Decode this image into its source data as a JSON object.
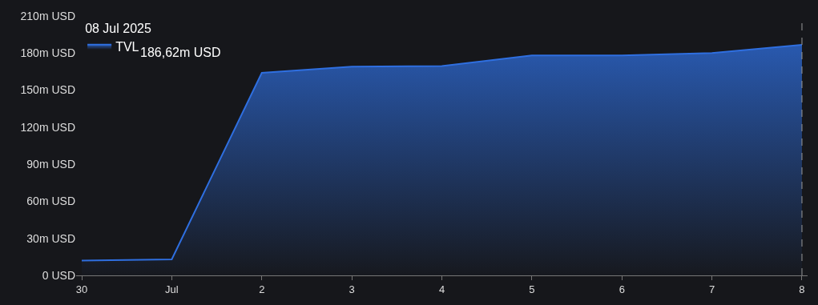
{
  "chart_data": {
    "type": "area",
    "legend_title": "08 Jul 2025",
    "x": [
      "2025-06-30",
      "2025-07-01",
      "2025-07-02",
      "2025-07-03",
      "2025-07-04",
      "2025-07-05",
      "2025-07-06",
      "2025-07-07",
      "2025-07-08"
    ],
    "series": [
      {
        "name": "TVL",
        "color": "#2f6fe0",
        "values": [
          12,
          13,
          164,
          169,
          169.5,
          178,
          178,
          180,
          186.62
        ]
      }
    ],
    "annotations": [
      "186,62m USD"
    ],
    "xlim": [
      "2025-06-29T22:30",
      "2025-07-08T01:30"
    ],
    "xticks": [
      {
        "value": "2025-06-30",
        "label": "30"
      },
      {
        "value": "2025-07-01",
        "label": "Jul"
      },
      {
        "value": "2025-07-02",
        "label": "2"
      },
      {
        "value": "2025-07-03",
        "label": "3"
      },
      {
        "value": "2025-07-04",
        "label": "4"
      },
      {
        "value": "2025-07-05",
        "label": "5"
      },
      {
        "value": "2025-07-06",
        "label": "6"
      },
      {
        "value": "2025-07-07",
        "label": "7"
      },
      {
        "value": "2025-07-08",
        "label": "8"
      }
    ],
    "ylim": [
      0,
      210
    ],
    "yticks": [
      {
        "value": 0,
        "label": "0 USD"
      },
      {
        "value": 30,
        "label": "30m USD"
      },
      {
        "value": 60,
        "label": "60m USD"
      },
      {
        "value": 90,
        "label": "90m USD"
      },
      {
        "value": 120,
        "label": "120m USD"
      },
      {
        "value": 150,
        "label": "150m USD"
      },
      {
        "value": 180,
        "label": "180m USD"
      },
      {
        "value": 210,
        "label": "210m USD"
      }
    ],
    "ref_lines": [
      {
        "axis": "x",
        "value": "2025-07-08",
        "label": null,
        "color": "#9a9a9a",
        "line_style": "dashed"
      }
    ],
    "legend": "top left",
    "grid": false,
    "marker": "none"
  }
}
